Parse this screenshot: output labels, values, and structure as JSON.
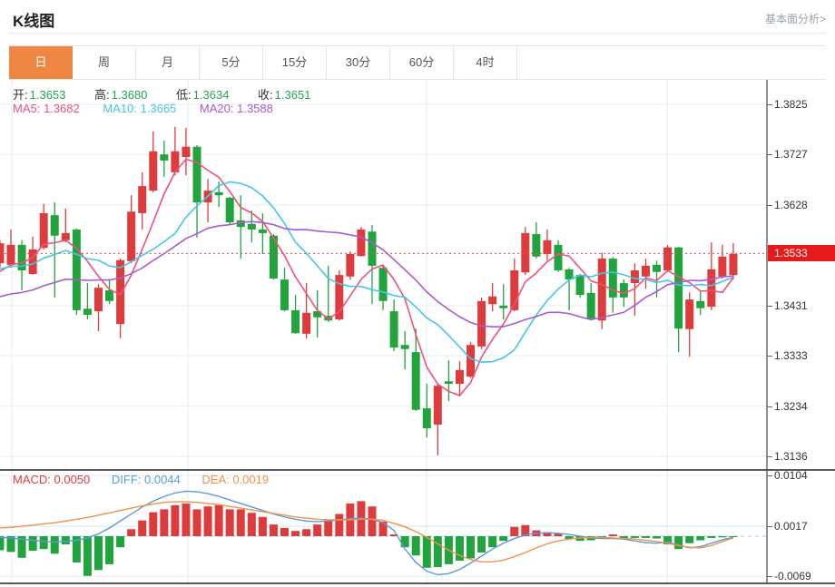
{
  "header": {
    "title": "K线图",
    "more_link": "基本面分析>"
  },
  "tabs": {
    "items": [
      "日",
      "周",
      "月",
      "5分",
      "15分",
      "30分",
      "60分",
      "4时"
    ],
    "active_index": 0
  },
  "legend": {
    "ohlc": {
      "open_label": "开:",
      "open": "1.3653",
      "high_label": "高:",
      "high": "1.3680",
      "low_label": "低:",
      "low": "1.3634",
      "close_label": "收:",
      "close": "1.3651"
    },
    "ma": {
      "ma5": "MA5: 1.3682",
      "ma10": "MA10: 1.3665",
      "ma20": "MA20: 1.3588"
    },
    "macd": {
      "macd": "MACD: 0.0050",
      "diff": "DIFF: 0.0044",
      "dea": "DEA: 0.0019"
    }
  },
  "axes": {
    "price_labels": [
      "1.3825",
      "1.3727",
      "1.3628",
      "1.3431",
      "1.3333",
      "1.3234",
      "1.3136"
    ],
    "current_price_tag": "1.3533",
    "macd_labels": [
      "0.0104",
      "0.0017",
      "-0.0069"
    ]
  },
  "colors": {
    "up": "#de3c3c",
    "down": "#21a43d",
    "ma5": "#f0507c",
    "ma10": "#45c6e5",
    "ma20": "#a95ad2",
    "diff": "#5b9bd5",
    "dea": "#f19149",
    "accent_tab": "#ee8742",
    "price_tag_bg": "#e61c1c",
    "dotted_line": "#f34545",
    "zero_dash": "#93d9ea",
    "grid_h": "#ececec",
    "grid_v": "#e4ebf2",
    "grid_cyan": "#cdeaf2",
    "panel_border": "#222",
    "axis_line": "#555"
  },
  "chart_data": {
    "type": "candlestick",
    "title": "K线图 (daily K-line with MACD)",
    "current_price": 1.3533,
    "price_axis_range": [
      1.3136,
      1.3825
    ],
    "macd_axis_range": [
      -0.0069,
      0.0104
    ],
    "legend_position": "top-left",
    "grid": true,
    "candles_ohlc": [
      [
        1.3514,
        1.3559,
        1.3505,
        1.3553
      ],
      [
        1.3511,
        1.358,
        1.3505,
        1.355
      ],
      [
        1.355,
        1.3559,
        1.3461,
        1.35
      ],
      [
        1.3493,
        1.3566,
        1.3491,
        1.3541
      ],
      [
        1.3544,
        1.363,
        1.3541,
        1.3612
      ],
      [
        1.3608,
        1.3633,
        1.3447,
        1.3568
      ],
      [
        1.3559,
        1.3621,
        1.3555,
        1.3573
      ],
      [
        1.358,
        1.3582,
        1.3413,
        1.3422
      ],
      [
        1.3425,
        1.3475,
        1.3404,
        1.3413
      ],
      [
        1.342,
        1.3473,
        1.3381,
        1.3466
      ],
      [
        1.3461,
        1.3482,
        1.3434,
        1.344
      ],
      [
        1.3395,
        1.3523,
        1.3367,
        1.352
      ],
      [
        1.3518,
        1.3647,
        1.3514,
        1.3615
      ],
      [
        1.3612,
        1.3692,
        1.358,
        1.3665
      ],
      [
        1.3656,
        1.3772,
        1.3653,
        1.3733
      ],
      [
        1.3727,
        1.3754,
        1.3683,
        1.3715
      ],
      [
        1.3692,
        1.3781,
        1.3686,
        1.3733
      ],
      [
        1.3722,
        1.3779,
        1.3686,
        1.3742
      ],
      [
        1.3742,
        1.3745,
        1.3564,
        1.3633
      ],
      [
        1.3633,
        1.3679,
        1.3594,
        1.3656
      ],
      [
        1.3653,
        1.3674,
        1.3624,
        1.3647
      ],
      [
        1.3642,
        1.3644,
        1.3589,
        1.3594
      ],
      [
        1.3598,
        1.3647,
        1.3523,
        1.3585
      ],
      [
        1.3591,
        1.3617,
        1.3555,
        1.358
      ],
      [
        1.358,
        1.3612,
        1.3532,
        1.3573
      ],
      [
        1.3568,
        1.3571,
        1.3482,
        1.3484
      ],
      [
        1.3482,
        1.3505,
        1.342,
        1.3422
      ],
      [
        1.3422,
        1.3452,
        1.3376,
        1.3377
      ],
      [
        1.3376,
        1.3475,
        1.3367,
        1.3417
      ],
      [
        1.342,
        1.3461,
        1.3369,
        1.3408
      ],
      [
        1.3411,
        1.3509,
        1.3399,
        1.3402
      ],
      [
        1.3404,
        1.35,
        1.3402,
        1.3491
      ],
      [
        1.3488,
        1.3537,
        1.3482,
        1.3532
      ],
      [
        1.3528,
        1.3585,
        1.3527,
        1.358
      ],
      [
        1.3576,
        1.3589,
        1.3434,
        1.3509
      ],
      [
        1.3505,
        1.3509,
        1.3422,
        1.344
      ],
      [
        1.342,
        1.3443,
        1.3342,
        1.3349
      ],
      [
        1.3354,
        1.3381,
        1.3306,
        1.3346
      ],
      [
        1.334,
        1.3386,
        1.3225,
        1.3227
      ],
      [
        1.323,
        1.3278,
        1.3173,
        1.3191
      ],
      [
        1.3198,
        1.328,
        1.3138,
        1.3274
      ],
      [
        1.3283,
        1.3324,
        1.3244,
        1.3278
      ],
      [
        1.3278,
        1.3322,
        1.3253,
        1.3305
      ],
      [
        1.3292,
        1.336,
        1.3289,
        1.3354
      ],
      [
        1.3351,
        1.3447,
        1.3346,
        1.344
      ],
      [
        1.3434,
        1.3475,
        1.342,
        1.3449
      ],
      [
        1.3431,
        1.3473,
        1.3404,
        1.3426
      ],
      [
        1.3422,
        1.3523,
        1.342,
        1.35
      ],
      [
        1.3496,
        1.3585,
        1.3491,
        1.3573
      ],
      [
        1.3571,
        1.3594,
        1.3523,
        1.3527
      ],
      [
        1.3532,
        1.358,
        1.352,
        1.3559
      ],
      [
        1.355,
        1.3559,
        1.3497,
        1.35
      ],
      [
        1.3502,
        1.3505,
        1.3422,
        1.3482
      ],
      [
        1.3491,
        1.3493,
        1.3447,
        1.3452
      ],
      [
        1.3456,
        1.3475,
        1.3402,
        1.3404
      ],
      [
        1.3402,
        1.3535,
        1.3385,
        1.3523
      ],
      [
        1.3523,
        1.3526,
        1.3417,
        1.3447
      ],
      [
        1.3475,
        1.3482,
        1.3429,
        1.3447
      ],
      [
        1.3475,
        1.3514,
        1.3411,
        1.35
      ],
      [
        1.3488,
        1.3523,
        1.3464,
        1.3509
      ],
      [
        1.3511,
        1.3519,
        1.3447,
        1.3497
      ],
      [
        1.35,
        1.355,
        1.3497,
        1.3545
      ],
      [
        1.3545,
        1.3546,
        1.334,
        1.3386
      ],
      [
        1.3385,
        1.3457,
        1.3331,
        1.3443
      ],
      [
        1.344,
        1.3461,
        1.3413,
        1.3426
      ],
      [
        1.3429,
        1.3555,
        1.3422,
        1.3502
      ],
      [
        1.3488,
        1.355,
        1.3484,
        1.3527
      ],
      [
        1.3491,
        1.3553,
        1.3482,
        1.3532
      ]
    ],
    "ma_anchors": {
      "ma5": 1.3484,
      "ma10": 1.3497,
      "ma20": 1.3443
    },
    "macd": {
      "histogram": [
        -0.0024,
        -0.0027,
        -0.0037,
        -0.0025,
        -0.0022,
        -0.003,
        -0.0014,
        -0.0045,
        -0.0068,
        -0.0058,
        -0.0048,
        -0.0019,
        0.0012,
        0.0027,
        0.0041,
        0.0046,
        0.0053,
        0.0056,
        0.0046,
        0.0051,
        0.0053,
        0.0046,
        0.0046,
        0.004,
        0.0033,
        0.002,
        0.0014,
        0.0009,
        0.0012,
        0.002,
        0.0027,
        0.0038,
        0.0056,
        0.006,
        0.0051,
        0.0025,
        0.0003,
        -0.0019,
        -0.0033,
        -0.0054,
        -0.0053,
        -0.0048,
        -0.0042,
        -0.0038,
        -0.0028,
        -0.0019,
        -0.0008,
        0.0016,
        0.0019,
        0.001,
        0.0007,
        0.0004,
        -0.0005,
        -0.0008,
        -0.0007,
        -0.0004,
        0.0003,
        -0.0004,
        -0.0003,
        -0.0003,
        -0.0004,
        -0.0014,
        -0.0022,
        -0.0012,
        -0.0007,
        -0.0003,
        -0.0002,
        -0.0001
      ],
      "diff": [
        -0.0002,
        -0.0003,
        -0.0005,
        -0.0007,
        -0.0009,
        -0.001,
        -0.0009,
        -0.0007,
        -0.0003,
        0.0004,
        0.0014,
        0.0026,
        0.0038,
        0.005,
        0.006,
        0.0068,
        0.0074,
        0.0077,
        0.0076,
        0.0073,
        0.0068,
        0.0062,
        0.0056,
        0.005,
        0.0044,
        0.0038,
        0.0033,
        0.0029,
        0.0026,
        0.0025,
        0.0026,
        0.0028,
        0.003,
        0.0031,
        0.0029,
        0.0023,
        0.001,
        -0.0022,
        -0.0045,
        -0.006,
        -0.0066,
        -0.0064,
        -0.0057,
        -0.0046,
        -0.0034,
        -0.0022,
        -0.0012,
        -0.0004,
        0.0002,
        0.0005,
        0.0006,
        0.0005,
        0.0003,
        0,
        -0.0003,
        -0.0004,
        -0.0004,
        -0.0005,
        -0.0008,
        -0.0011,
        -0.0012,
        -0.001,
        -0.0015,
        -0.002,
        -0.0018,
        -0.0012,
        -0.0006,
        -0.0002
      ],
      "dea": [
        0.0014,
        0.0015,
        0.0017,
        0.0019,
        0.0021,
        0.0023,
        0.0026,
        0.0029,
        0.0032,
        0.0036,
        0.004,
        0.0044,
        0.0048,
        0.0052,
        0.0055,
        0.0058,
        0.0059,
        0.0059,
        0.0058,
        0.0056,
        0.0054,
        0.0051,
        0.0048,
        0.0045,
        0.0042,
        0.0039,
        0.0036,
        0.0033,
        0.0031,
        0.0029,
        0.0028,
        0.0028,
        0.0028,
        0.0029,
        0.0029,
        0.0027,
        0.0022,
        0.0016,
        0.0008,
        -0.0002,
        -0.0013,
        -0.0024,
        -0.0033,
        -0.004,
        -0.0044,
        -0.0044,
        -0.0041,
        -0.0035,
        -0.0028,
        -0.002,
        -0.0013,
        -0.0008,
        -0.0005,
        -0.0003,
        -0.0002,
        -0.0002,
        -0.0003,
        -0.0004,
        -0.0005,
        -0.0007,
        -0.0009,
        -0.0012,
        -0.0016,
        -0.0019,
        -0.002,
        -0.0016,
        -0.0009,
        -0.0003
      ]
    }
  }
}
